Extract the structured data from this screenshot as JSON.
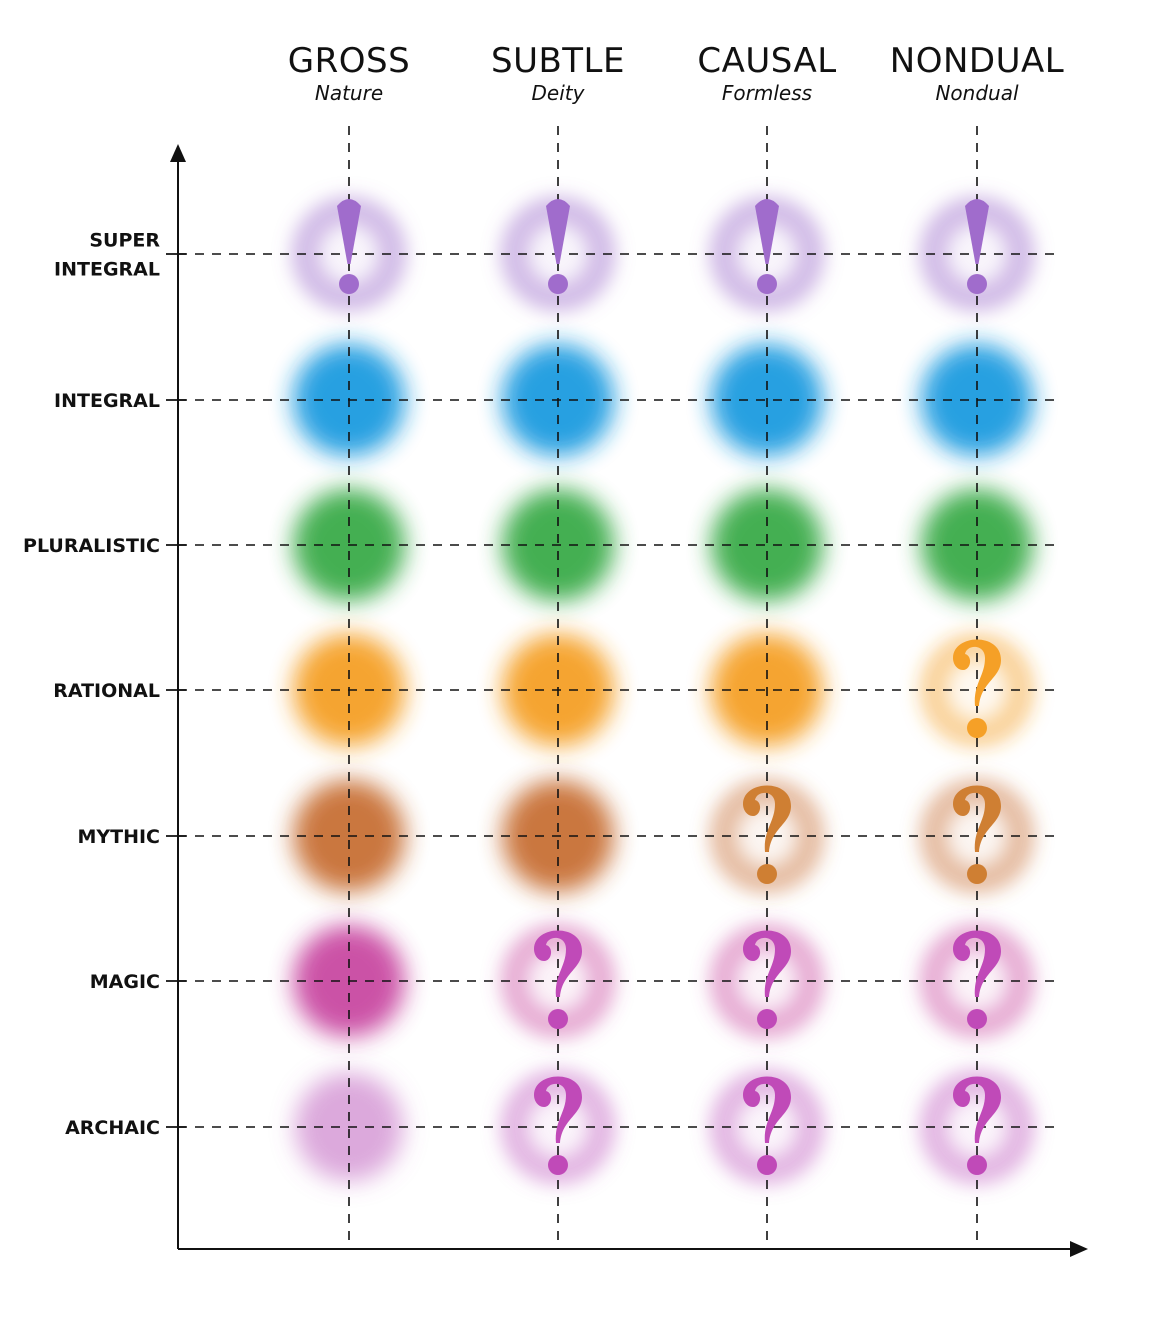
{
  "columns": [
    {
      "title": "GROSS",
      "subtitle": "Nature"
    },
    {
      "title": "SUBTLE",
      "subtitle": "Deity"
    },
    {
      "title": "CAUSAL",
      "subtitle": "Formless"
    },
    {
      "title": "NONDUAL",
      "subtitle": "Nondual"
    }
  ],
  "rows": [
    {
      "label_lines": [
        "SUPER",
        "INTEGRAL"
      ],
      "color": "#9b6cc9"
    },
    {
      "label_lines": [
        "INTEGRAL"
      ],
      "color": "#1a9be0"
    },
    {
      "label_lines": [
        "PLURALISTIC"
      ],
      "color": "#3aab4a"
    },
    {
      "label_lines": [
        "RATIONAL"
      ],
      "color": "#f5a027"
    },
    {
      "label_lines": [
        "MYTHIC"
      ],
      "color": "#c86f34"
    },
    {
      "label_lines": [
        "MAGIC"
      ],
      "color": "#c94aa2"
    },
    {
      "label_lines": [
        "ARCHAIC"
      ],
      "color": "#c060c0"
    }
  ],
  "cells": [
    [
      "exclaim",
      "exclaim",
      "exclaim",
      "exclaim"
    ],
    [
      "solid",
      "solid",
      "solid",
      "solid"
    ],
    [
      "solid",
      "solid",
      "solid",
      "solid"
    ],
    [
      "solid",
      "solid",
      "solid",
      "question"
    ],
    [
      "solid",
      "solid",
      "question",
      "question"
    ],
    [
      "solid",
      "question",
      "question",
      "question"
    ],
    [
      "faint",
      "question",
      "question",
      "question"
    ]
  ],
  "symbols": {
    "exclaim": {
      "glyph": "!",
      "color": "#a06ccc"
    },
    "question_colors": [
      "#ffffff",
      "#ffffff",
      "#ffffff",
      "#f5a027",
      "#cf7f33",
      "#c04ab8",
      "#c04ab8"
    ]
  }
}
